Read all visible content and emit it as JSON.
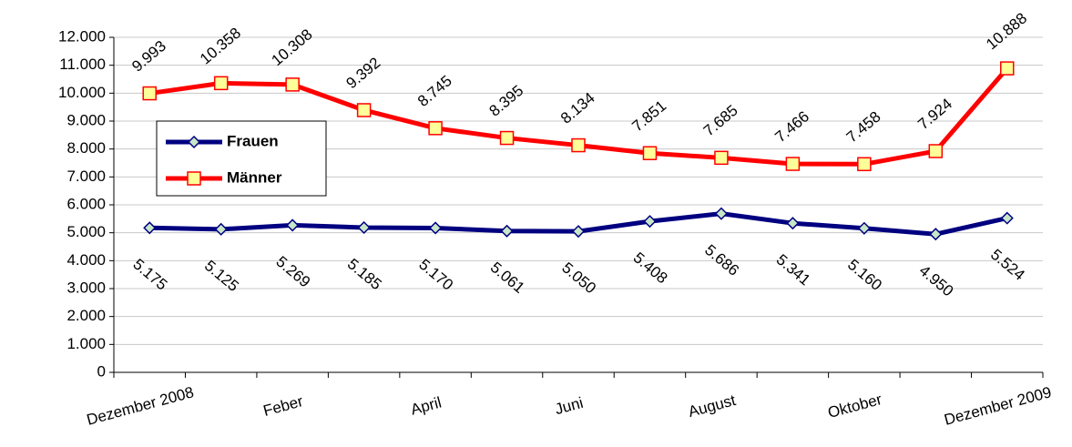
{
  "chart_data": {
    "type": "line",
    "categories": [
      "Dezember 2008",
      null,
      "Feber",
      null,
      "April",
      null,
      "Juni",
      null,
      "August",
      null,
      "Oktober",
      null,
      "Dezember 2009"
    ],
    "series": [
      {
        "name": "Frauen",
        "color": "#000080",
        "marker_fill": "#c8e6c8",
        "marker": "diamond",
        "values": [
          5175,
          5125,
          5269,
          5185,
          5170,
          5061,
          5050,
          5408,
          5686,
          5341,
          5160,
          4950,
          5524
        ],
        "value_labels": [
          "5.175",
          "5.125",
          "5.269",
          "5.185",
          "5.170",
          "5.061",
          "5.050",
          "5.408",
          "5.686",
          "5.341",
          "5.160",
          "4.950",
          "5.524"
        ]
      },
      {
        "name": "Männer",
        "color": "#ff0000",
        "marker_fill": "#ffff99",
        "marker": "square",
        "values": [
          9993,
          10358,
          10308,
          9392,
          8745,
          8395,
          8134,
          7851,
          7685,
          7466,
          7458,
          7924,
          10888
        ],
        "value_labels": [
          "9.993",
          "10.358",
          "10.308",
          "9.392",
          "8.745",
          "8.395",
          "8.134",
          "7.851",
          "7.685",
          "7.466",
          "7.458",
          "7.924",
          "10.888"
        ]
      }
    ],
    "ylim": [
      0,
      12000
    ],
    "yticks": [
      0,
      {
        "value": 1000,
        "label": "1.000"
      },
      {
        "value": 2000,
        "label": "2.000"
      },
      {
        "value": 3000,
        "label": "3.000"
      },
      {
        "value": 4000,
        "label": "4.000"
      },
      {
        "value": 5000,
        "label": "5.000"
      },
      {
        "value": 6000,
        "label": "6.000"
      },
      {
        "value": 7000,
        "label": "7.000"
      },
      {
        "value": 8000,
        "label": "8.000"
      },
      {
        "value": 9000,
        "label": "9.000"
      },
      {
        "value": 10000,
        "label": "10.000"
      },
      {
        "value": 11000,
        "label": "11.000"
      },
      {
        "value": 12000,
        "label": "12.000"
      }
    ],
    "grid": true,
    "legend": "upper left"
  }
}
